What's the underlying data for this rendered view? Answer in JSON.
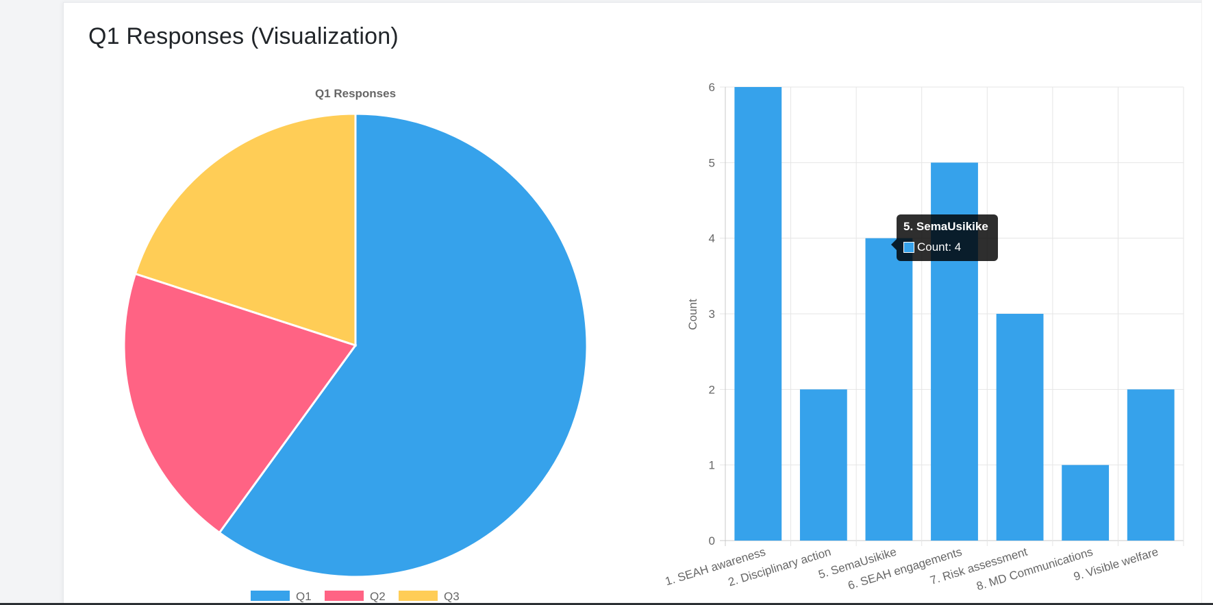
{
  "card": {
    "title": "Q1 Responses (Visualization)"
  },
  "chart_data": [
    {
      "type": "pie",
      "title": "Q1 Responses",
      "categories": [
        "Q1",
        "Q2",
        "Q3"
      ],
      "values": [
        60,
        20,
        20
      ],
      "colors": [
        "#36a2eb",
        "#ff6384",
        "#ffcd56"
      ],
      "legend": "bottom"
    },
    {
      "type": "bar",
      "title": "",
      "categories": [
        "1. SEAH awareness",
        "2. Disciplinary action",
        "5. SemaUsikike",
        "6. SEAH engagements",
        "7. Risk assessment",
        "8. MD Communications",
        "9. Visible welfare"
      ],
      "series": [
        {
          "name": "Count",
          "values": [
            6,
            2,
            4,
            5,
            3,
            1,
            2
          ],
          "color": "#36a2eb"
        }
      ],
      "xlabel": "",
      "ylabel": "Count",
      "ylim": [
        0,
        6
      ],
      "yticks": [
        "0",
        "1",
        "2",
        "3",
        "4",
        "5",
        "6"
      ],
      "grid": true,
      "tooltip": {
        "title": "5. SemaUsikike",
        "label": "Count: 4"
      }
    }
  ]
}
